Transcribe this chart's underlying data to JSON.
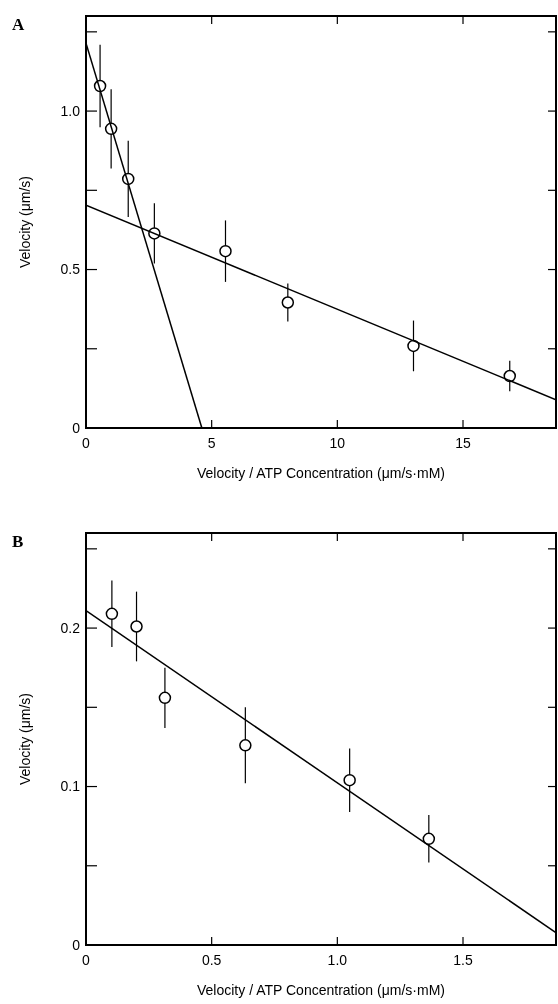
{
  "chart_data": [
    {
      "type": "scatter",
      "title": "A",
      "xlabel": "Velocity / ATP Concentration (μm/s·mM)",
      "ylabel": "Velocity (μm/s)",
      "xlim": [
        0,
        18.7
      ],
      "ylim": [
        0,
        1.3
      ],
      "xticks": [
        0,
        5,
        10,
        15
      ],
      "yticks": [
        0,
        {
          "value": 0.25,
          "label": null
        },
        0.5,
        {
          "value": 0.75,
          "label": null
        },
        {
          "value": 1.0,
          "label": "1.0"
        },
        {
          "value": 1.25,
          "label": null
        }
      ],
      "series": [
        {
          "marker": "circle",
          "color": "#000000",
          "x": [
            0.56,
            1.0,
            1.68,
            2.72,
            5.55,
            8.03,
            13.03,
            16.86
          ],
          "values": [
            1.079,
            0.944,
            0.786,
            0.614,
            0.558,
            0.396,
            0.259,
            0.164
          ],
          "errors": [
            0.13,
            0.125,
            0.12,
            0.095,
            0.097,
            0.06,
            0.08,
            0.048
          ]
        },
        {
          "type": "line",
          "marker": "none",
          "color": "#000000",
          "x": [
            0,
            4.61
          ],
          "values": [
            1.214,
            0
          ]
        },
        {
          "type": "line",
          "marker": "none",
          "color": "#000000",
          "x": [
            0,
            18.7
          ],
          "values": [
            0.703,
            0.089
          ]
        }
      ]
    },
    {
      "type": "scatter",
      "title": "B",
      "xlabel": "Velocity / ATP Concentration (μm/s·mM)",
      "ylabel": "Velocity (μm/s)",
      "xlim": [
        0,
        1.87
      ],
      "ylim": [
        0,
        0.26
      ],
      "xticks": [
        0,
        0.5,
        {
          "value": 1.0,
          "label": "1.0"
        },
        1.5
      ],
      "yticks": [
        0,
        {
          "value": 0.05,
          "label": null
        },
        0.1,
        {
          "value": 0.15,
          "label": null
        },
        0.2,
        {
          "value": 0.25,
          "label": null
        }
      ],
      "series": [
        {
          "marker": "circle",
          "color": "#000000",
          "x": [
            0.103,
            0.201,
            0.314,
            0.634,
            1.049,
            1.364
          ],
          "values": [
            0.209,
            0.201,
            0.156,
            0.126,
            0.104,
            0.067
          ],
          "errors": [
            0.021,
            0.022,
            0.019,
            0.024,
            0.02,
            0.015
          ]
        },
        {
          "type": "line",
          "marker": "none",
          "color": "#000000",
          "x": [
            0,
            1.868
          ],
          "values": [
            0.211,
            0.008
          ]
        }
      ]
    }
  ]
}
